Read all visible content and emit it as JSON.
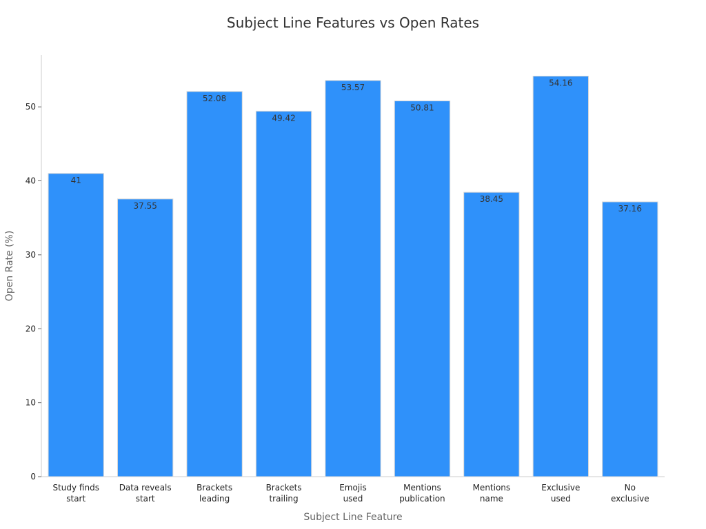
{
  "chart_data": {
    "type": "bar",
    "title": "Subject Line Features vs Open Rates",
    "xlabel": "Subject Line Feature",
    "ylabel": "Open Rate (%)",
    "categories": [
      [
        "Study finds",
        "start"
      ],
      [
        "Data reveals",
        "start"
      ],
      [
        "Brackets",
        "leading"
      ],
      [
        "Brackets",
        "trailing"
      ],
      [
        "Emojis",
        "used"
      ],
      [
        "Mentions",
        "publication"
      ],
      [
        "Mentions",
        "name"
      ],
      [
        "Exclusive",
        "used"
      ],
      [
        "No",
        "exclusive"
      ]
    ],
    "values": [
      41,
      37.55,
      52.08,
      49.42,
      53.57,
      50.81,
      38.45,
      54.16,
      37.16
    ],
    "data_labels": [
      "41",
      "37.55",
      "52.08",
      "49.42",
      "53.57",
      "50.81",
      "38.45",
      "54.16",
      "37.16"
    ],
    "ylim": [
      0,
      57
    ],
    "yticks": [
      0,
      10,
      20,
      30,
      40,
      50
    ],
    "grid": false,
    "legend": "none",
    "bar_color": "#2f91fa"
  }
}
